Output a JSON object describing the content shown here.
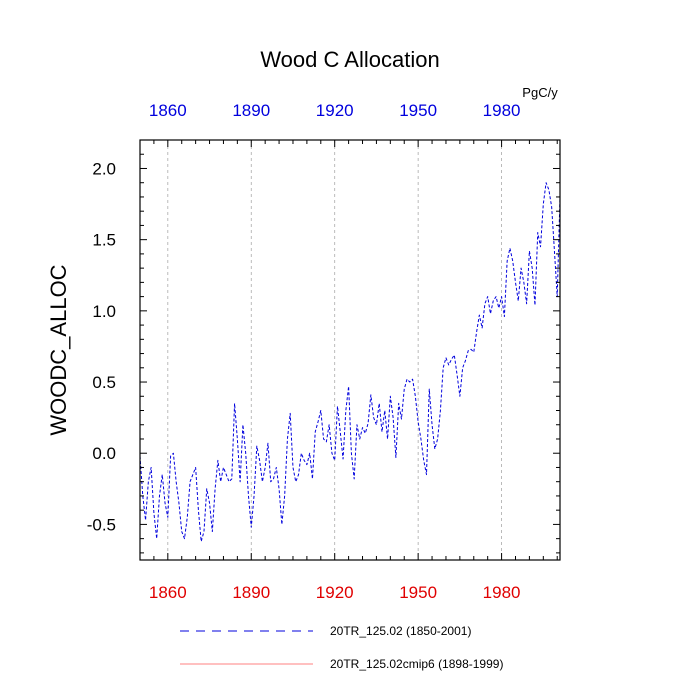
{
  "chart_data": {
    "type": "line",
    "title": "Wood C Allocation",
    "units": "PgC/y",
    "ylabel": "WOODC_ALLOC",
    "xlabel": "",
    "xlim": [
      1850,
      2001
    ],
    "ylim": [
      -0.75,
      2.2
    ],
    "xticks": [
      1860,
      1890,
      1920,
      1950,
      1980
    ],
    "xtick_labels": [
      "1860",
      "1890",
      "1920",
      "1950",
      "1980"
    ],
    "yticks": [
      -0.5,
      0.0,
      0.5,
      1.0,
      1.5,
      2.0
    ],
    "ytick_labels": [
      "-0.5",
      "0.0",
      "0.5",
      "1.0",
      "1.5",
      "2.0"
    ],
    "grid": "vertical dashed at x ticks",
    "series": [
      {
        "name": "20TR_125.02 (1850-2001)",
        "color": "#0000dd",
        "style": "dashed",
        "x": [
          1850,
          1851,
          1852,
          1853,
          1854,
          1855,
          1856,
          1857,
          1858,
          1859,
          1860,
          1861,
          1862,
          1863,
          1864,
          1865,
          1866,
          1867,
          1868,
          1869,
          1870,
          1871,
          1872,
          1873,
          1874,
          1875,
          1876,
          1877,
          1878,
          1879,
          1880,
          1881,
          1882,
          1883,
          1884,
          1885,
          1886,
          1887,
          1888,
          1889,
          1890,
          1891,
          1892,
          1893,
          1894,
          1895,
          1896,
          1897,
          1898,
          1899,
          1900,
          1901,
          1902,
          1903,
          1904,
          1905,
          1906,
          1907,
          1908,
          1909,
          1910,
          1911,
          1912,
          1913,
          1914,
          1915,
          1916,
          1917,
          1918,
          1919,
          1920,
          1921,
          1922,
          1923,
          1924,
          1925,
          1926,
          1927,
          1928,
          1929,
          1930,
          1931,
          1932,
          1933,
          1934,
          1935,
          1936,
          1937,
          1938,
          1939,
          1940,
          1941,
          1942,
          1943,
          1944,
          1945,
          1946,
          1947,
          1948,
          1949,
          1950,
          1951,
          1952,
          1953,
          1954,
          1955,
          1956,
          1957,
          1958,
          1959,
          1960,
          1961,
          1962,
          1963,
          1964,
          1965,
          1966,
          1967,
          1968,
          1969,
          1970,
          1971,
          1972,
          1973,
          1974,
          1975,
          1976,
          1977,
          1978,
          1979,
          1980,
          1981,
          1982,
          1983,
          1984,
          1985,
          1986,
          1987,
          1988,
          1989,
          1990,
          1991,
          1992,
          1993,
          1994,
          1995,
          1996,
          1997,
          1998,
          1999,
          2000,
          2001
        ],
        "values": [
          -0.02,
          -0.3,
          -0.47,
          -0.2,
          -0.1,
          -0.42,
          -0.6,
          -0.3,
          -0.15,
          -0.35,
          -0.45,
          -0.02,
          0.0,
          -0.2,
          -0.35,
          -0.55,
          -0.6,
          -0.45,
          -0.2,
          -0.15,
          -0.1,
          -0.4,
          -0.62,
          -0.55,
          -0.25,
          -0.35,
          -0.55,
          -0.25,
          -0.05,
          -0.2,
          -0.1,
          -0.15,
          -0.2,
          -0.18,
          0.35,
          0.1,
          -0.2,
          0.2,
          0.0,
          -0.3,
          -0.52,
          -0.3,
          0.05,
          -0.05,
          -0.2,
          -0.1,
          0.07,
          -0.2,
          -0.18,
          -0.1,
          -0.25,
          -0.5,
          -0.3,
          0.1,
          0.28,
          -0.1,
          -0.2,
          -0.15,
          0.0,
          -0.05,
          -0.08,
          0.0,
          -0.18,
          0.15,
          0.22,
          0.3,
          0.1,
          0.08,
          0.2,
          0.0,
          -0.05,
          0.33,
          0.15,
          -0.04,
          0.3,
          0.47,
          0.0,
          -0.18,
          0.2,
          0.1,
          0.18,
          0.14,
          0.21,
          0.41,
          0.25,
          0.2,
          0.35,
          0.15,
          0.3,
          0.1,
          0.4,
          0.25,
          -0.03,
          0.35,
          0.24,
          0.45,
          0.52,
          0.5,
          0.52,
          0.4,
          0.22,
          0.1,
          -0.05,
          -0.15,
          0.45,
          0.2,
          0.03,
          0.1,
          0.3,
          0.6,
          0.67,
          0.62,
          0.66,
          0.69,
          0.55,
          0.4,
          0.6,
          0.65,
          0.72,
          0.73,
          0.71,
          0.85,
          0.97,
          0.88,
          1.05,
          1.1,
          0.98,
          1.07,
          1.1,
          1.02,
          1.1,
          0.96,
          1.35,
          1.44,
          1.35,
          1.2,
          1.07,
          1.3,
          1.2,
          1.05,
          1.42,
          1.3,
          1.04,
          1.55,
          1.45,
          1.75,
          1.9,
          1.85,
          1.73,
          1.42,
          1.1,
          1.8
        ]
      },
      {
        "name": "20TR_125.02cmip6 (1898-1999)",
        "color": "#ff8080",
        "style": "solid",
        "x": [],
        "values": []
      }
    ]
  }
}
